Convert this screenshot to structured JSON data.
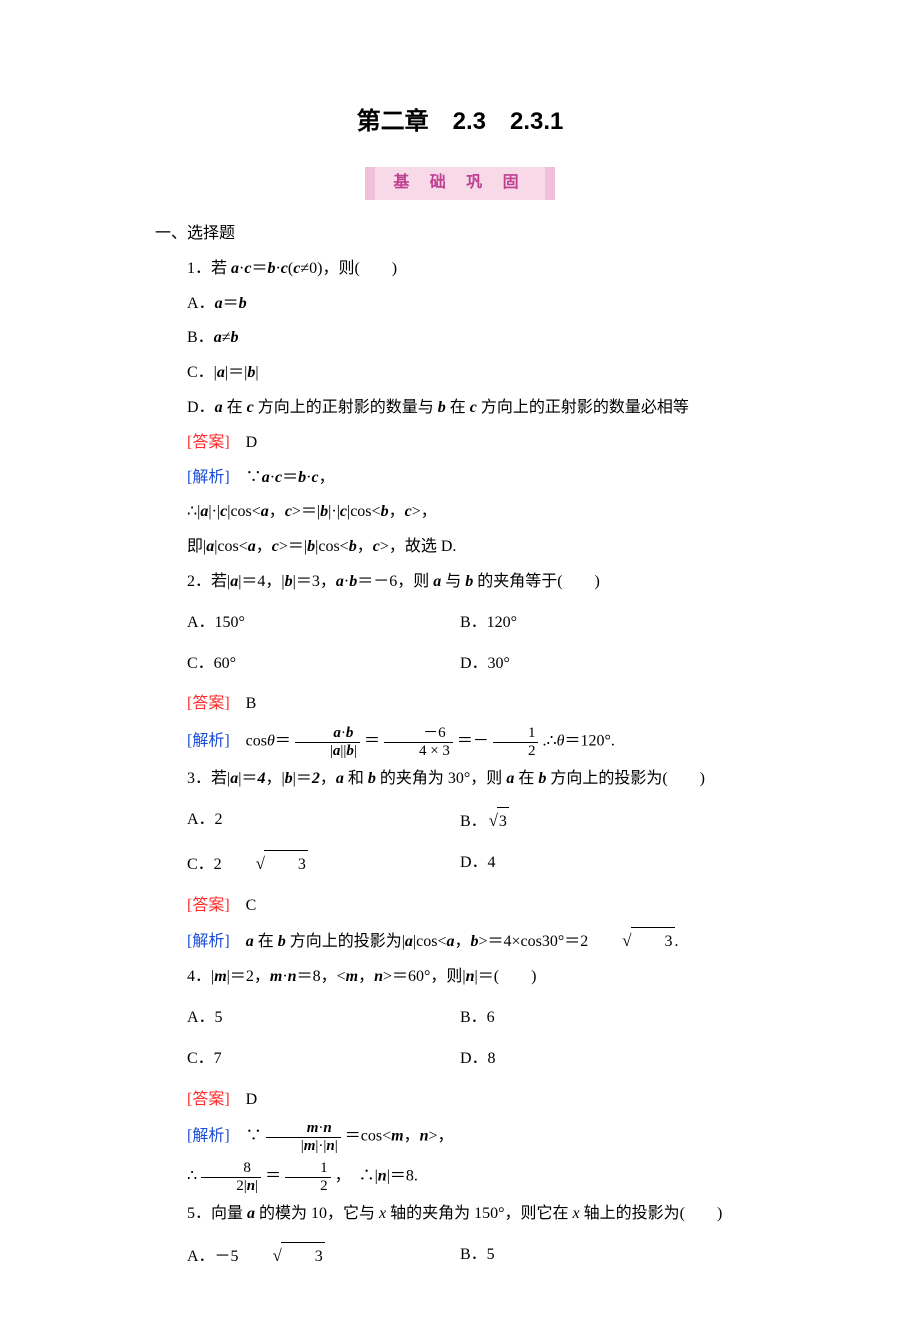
{
  "title": "第二章　2.3　2.3.1",
  "banner": "基 础 巩 固",
  "section_heading": "一、选择题",
  "labels": {
    "answer": "[答案]",
    "analysis": "[解析]"
  },
  "q1": {
    "stem_prefix": "1．若 ",
    "stem_mid": "·",
    "stem_after": "(",
    "stem_neq": "≠0)，则(　　)",
    "optA": "A．",
    "optB": "B．",
    "optC_pre": "C．|",
    "optC_mid": "|＝|",
    "optC_end": "|",
    "optD_pre": "D．",
    "optD_mid1": " 在 ",
    "optD_mid2": " 方向上的正射影的数量与 ",
    "optD_mid3": " 在 ",
    "optD_end": " 方向上的正射影的数量必相等",
    "ans": "　D",
    "ana1_pre": "　∵",
    "ana2": "∴|",
    "ana2_b": "|·|",
    "ana2_c": "|cos<",
    "ana2_d": "，",
    "ana2_e": ">＝|",
    "ana2_f": "|·|",
    "ana2_g": "|cos<",
    "ana2_h": "，",
    "ana2_i": ">，",
    "ana3_a": "即|",
    "ana3_b": "|cos<",
    "ana3_c": "，",
    "ana3_d": ">＝|",
    "ana3_e": "|cos<",
    "ana3_f": "，",
    "ana3_g": ">，故选 D."
  },
  "q2": {
    "stem_pre": "2．若|",
    "stem_a2": "|＝4，|",
    "stem_a3": "|＝3，",
    "stem_a4": "·",
    "stem_a5": "＝－6，则 ",
    "stem_a6": " 与 ",
    "stem_a7": " 的夹角等于(　　)",
    "optA": "A．150°",
    "optB": "B．120°",
    "optC": "C．60°",
    "optD": "D．30°",
    "ans": "　B",
    "ana_pre": "　cos",
    "theta": "θ",
    "eq": "＝",
    "num1_a": "a",
    "num1_dot": "·",
    "num1_b": "b",
    "den1_pre": "|",
    "den1_mid": "||",
    "den1_end": "|",
    "num2": "－6",
    "den2": "4 × 3",
    "num3": "1",
    "den3": "2",
    "ana_end": ".∴",
    "ana_end2": "＝120°."
  },
  "q3": {
    "stem_pre": "3．若|",
    "stem_2": "|＝",
    "val_a": "4",
    "stem_3": "，|",
    "stem_4": "|＝",
    "val_b": "2",
    "stem_5": "，",
    "stem_6": " 和 ",
    "stem_7": " 的夹角为 30°，则 ",
    "stem_8": " 在 ",
    "stem_9": " 方向上的投影为(　　)",
    "optA": "A．2",
    "optB_pre": "B．",
    "optB_rad": "3",
    "optC_pre": "C．2",
    "optC_rad": "3",
    "optD": "D．4",
    "ans": "　C",
    "ana_pre": "　",
    "ana_2": " 在 ",
    "ana_3": " 方向上的投影为|",
    "ana_4": "|cos<",
    "ana_5": "，",
    "ana_6": ">＝4×cos30°＝2",
    "ana_rad": "3",
    "ana_end": "."
  },
  "q4": {
    "stem_pre": "4．|",
    "stem_2": "|＝2，",
    "stem_3": "·",
    "stem_4": "＝8，<",
    "stem_5": "，",
    "stem_6": ">＝60°，则|",
    "stem_7": "|＝(　　)",
    "optA": "A．5",
    "optB": "B．6",
    "optC": "C．7",
    "optD": "D．8",
    "ans": "　D",
    "ana_pre": "　∵",
    "num1_m": "m",
    "num1_dot": "·",
    "num1_n": "n",
    "den1_pre": "|",
    "den1_mid": "|·|",
    "den1_end": "|",
    "ana_mid": "＝cos<",
    "ana_mid2": "，",
    "ana_mid3": ">，",
    "line2_pre": "∴",
    "line2_num": "8",
    "line2_den_pre": "2|",
    "line2_den_end": "|",
    "line2_eq": "＝",
    "line2_num2": "1",
    "line2_den2": "2",
    "line2_mid": "，　∴|",
    "line2_end": "|＝8."
  },
  "q5": {
    "stem": "5．向量 ",
    "stem_2": " 的模为 10，它与 ",
    "x": "x",
    "stem_3": " 轴的夹角为 150°，则它在 ",
    "stem_4": " 轴上的投影为(　　)",
    "optA_pre": "A．－5",
    "optA_rad": "3",
    "optB": "B．5"
  },
  "vec": {
    "a": "a",
    "b": "b",
    "c": "c",
    "m": "m",
    "n": "n"
  }
}
